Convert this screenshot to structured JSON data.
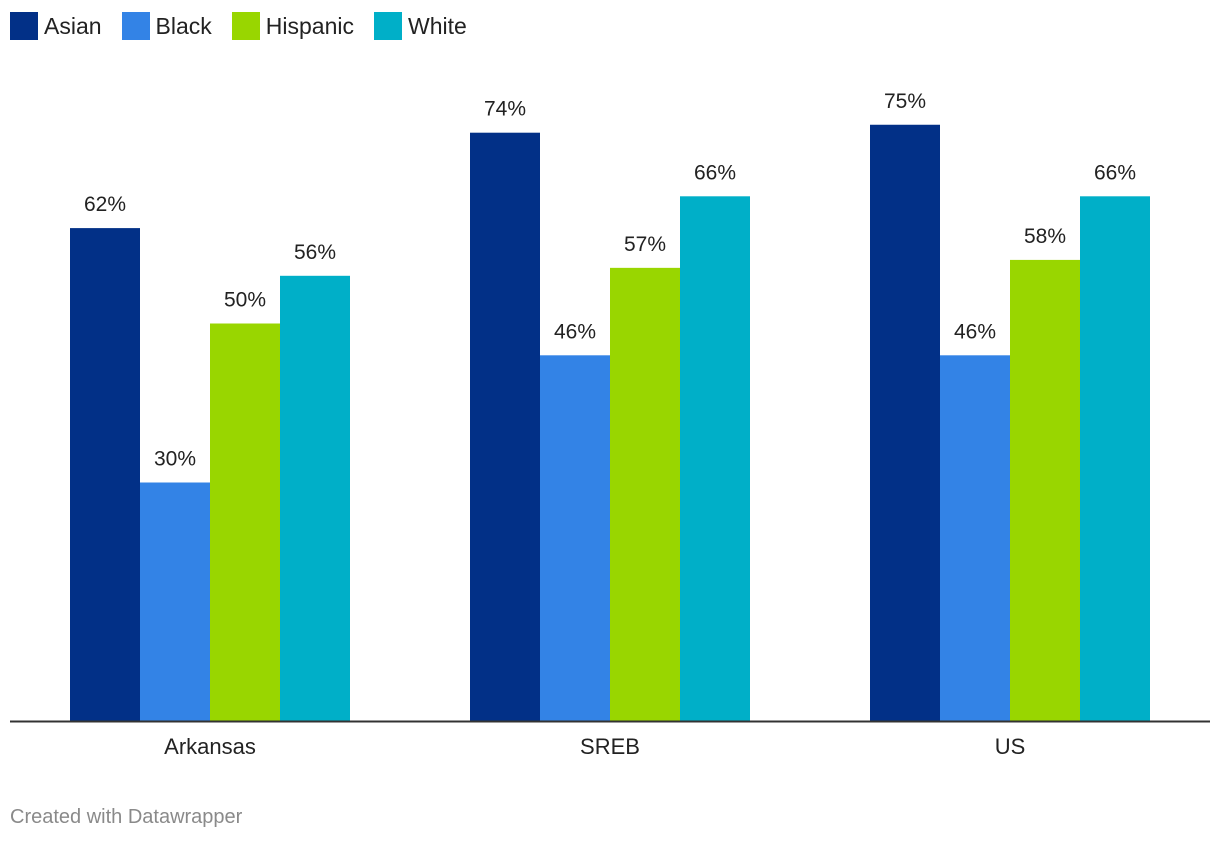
{
  "legend": [
    {
      "label": "Asian",
      "color": "#023087"
    },
    {
      "label": "Black",
      "color": "#3383e6"
    },
    {
      "label": "Hispanic",
      "color": "#99d600"
    },
    {
      "label": "White",
      "color": "#00afc8"
    }
  ],
  "chart_data": {
    "type": "bar",
    "categories": [
      "Arkansas",
      "SREB",
      "US"
    ],
    "series": [
      {
        "name": "Asian",
        "values": [
          62,
          74,
          75
        ],
        "labels": [
          "62%",
          "74%",
          "75%"
        ],
        "color": "#023087"
      },
      {
        "name": "Black",
        "values": [
          30,
          46,
          46
        ],
        "labels": [
          "30%",
          "46%",
          "46%"
        ],
        "color": "#3383e6"
      },
      {
        "name": "Hispanic",
        "values": [
          50,
          57,
          58
        ],
        "labels": [
          "50%",
          "57%",
          "58%"
        ],
        "color": "#99d600"
      },
      {
        "name": "White",
        "values": [
          56,
          66,
          66
        ],
        "labels": [
          "56%",
          "66%",
          "66%"
        ],
        "color": "#00afc8"
      }
    ],
    "ylim": [
      0,
      100
    ],
    "grid": false,
    "legend_position": "top-left",
    "title": "",
    "xlabel": "",
    "ylabel": ""
  },
  "footer": {
    "credit": "Created with Datawrapper"
  }
}
